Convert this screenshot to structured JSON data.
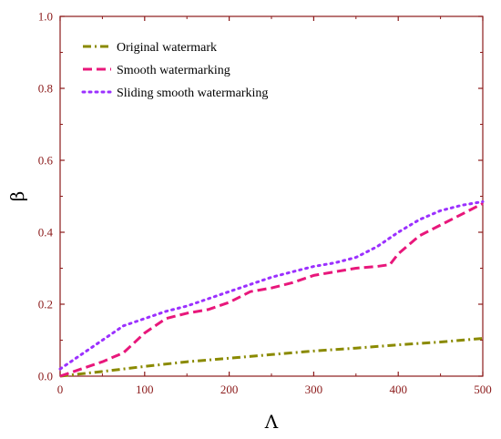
{
  "chart_data": {
    "type": "line",
    "title": "",
    "xlabel": "Λ",
    "ylabel": "β",
    "xlim": [
      0,
      500
    ],
    "ylim": [
      0,
      1.0
    ],
    "xticks": [
      0,
      100,
      200,
      300,
      400,
      500
    ],
    "yticks": [
      0.0,
      0.2,
      0.4,
      0.6,
      0.8,
      1.0
    ],
    "ytick_labels": [
      "0.0",
      "0.2",
      "0.4",
      "0.6",
      "0.8",
      "1.0"
    ],
    "grid": false,
    "legend_position": "top-left",
    "axis_color": "#8b1a1a",
    "series": [
      {
        "name": "Original watermark",
        "color": "#8a8a00",
        "dash": "dash-dot",
        "x": [
          0,
          50,
          100,
          150,
          200,
          250,
          300,
          350,
          400,
          450,
          500
        ],
        "y": [
          0.0,
          0.013,
          0.027,
          0.04,
          0.05,
          0.06,
          0.07,
          0.078,
          0.087,
          0.095,
          0.105
        ]
      },
      {
        "name": "Smooth watermarking",
        "color": "#e8177b",
        "dash": "dash",
        "x": [
          0,
          25,
          50,
          75,
          100,
          125,
          150,
          175,
          200,
          225,
          250,
          275,
          300,
          325,
          350,
          375,
          390,
          400,
          425,
          450,
          475,
          500
        ],
        "y": [
          0.0,
          0.02,
          0.04,
          0.065,
          0.12,
          0.16,
          0.175,
          0.185,
          0.205,
          0.235,
          0.245,
          0.26,
          0.28,
          0.29,
          0.3,
          0.305,
          0.31,
          0.34,
          0.39,
          0.42,
          0.45,
          0.48
        ]
      },
      {
        "name": "Sliding smooth watermarking",
        "color": "#9b30ff",
        "dash": "dot",
        "x": [
          0,
          25,
          50,
          75,
          100,
          125,
          150,
          175,
          200,
          225,
          250,
          275,
          300,
          325,
          350,
          375,
          400,
          425,
          450,
          475,
          500
        ],
        "y": [
          0.02,
          0.06,
          0.1,
          0.14,
          0.16,
          0.18,
          0.195,
          0.215,
          0.235,
          0.255,
          0.275,
          0.29,
          0.305,
          0.315,
          0.33,
          0.36,
          0.4,
          0.435,
          0.46,
          0.475,
          0.485
        ]
      }
    ]
  }
}
